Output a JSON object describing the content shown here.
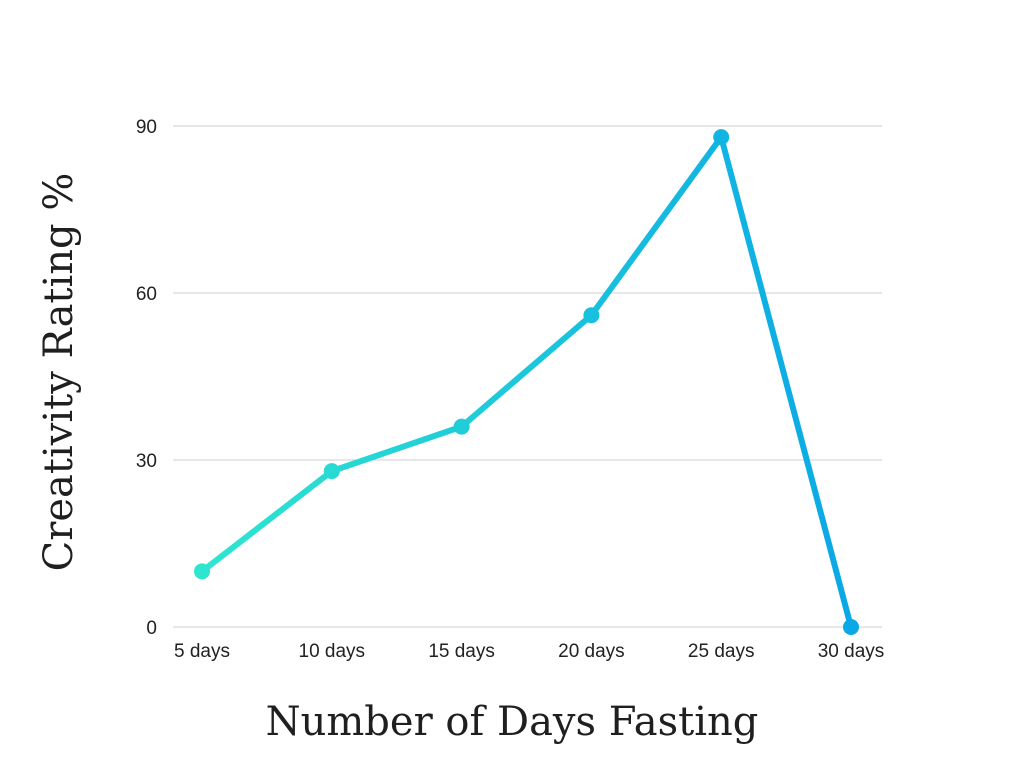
{
  "chart_data": {
    "type": "line",
    "title": "",
    "xlabel": "Number of Days Fasting",
    "ylabel": "Creativity Rating %",
    "categories": [
      "5 days",
      "10 days",
      "15 days",
      "20 days",
      "25 days",
      "30 days"
    ],
    "series": [
      {
        "values": [
          10,
          28,
          36,
          56,
          88,
          0
        ],
        "color_start": "#2ee6cf",
        "color_end": "#0aa8e6"
      }
    ],
    "ylim": [
      0,
      90
    ],
    "yticks": [
      0,
      30,
      60,
      90
    ],
    "ytick_labels": [
      "0",
      "30",
      "60",
      "90"
    ],
    "grid": true,
    "legend": "none"
  }
}
